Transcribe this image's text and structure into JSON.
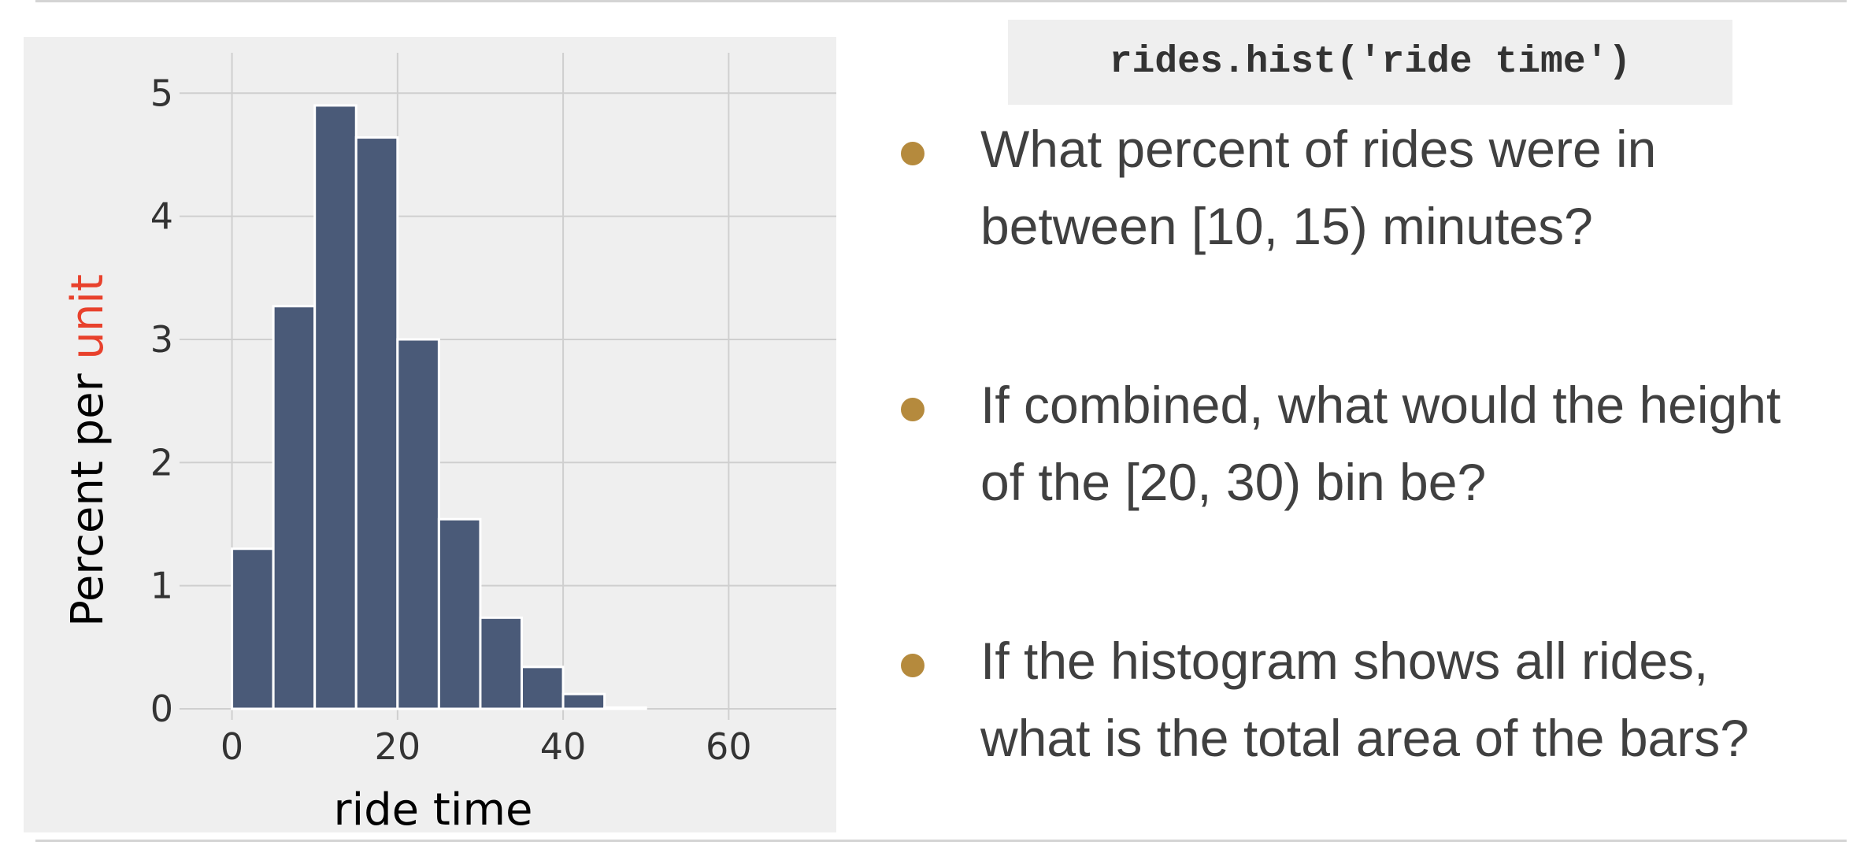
{
  "code": {
    "text": "rides.hist('ride time')"
  },
  "questions": [
    {
      "line1": "What percent of rides were in",
      "line2": "between [10, 15) minutes?"
    },
    {
      "line1": "If combined, what would the height",
      "line2": "of the [20, 30) bin be?"
    },
    {
      "line1": "If the histogram shows all rides,",
      "line2": "what is the total area of the bars?"
    }
  ],
  "colors": {
    "bar_fill": "#4a5a78",
    "bar_edge": "#ffffff",
    "plot_bg": "#efefef",
    "grid": "#cfcfcf",
    "bullet": "#b58a3d",
    "ylabel_highlight": "#e8412c",
    "text": "#404040"
  },
  "chart_data": {
    "type": "bar",
    "subtype": "histogram",
    "xlabel": "ride time",
    "ylabel_prefix": "Percent per ",
    "ylabel_highlight": "unit",
    "bins": [
      {
        "start": 0,
        "end": 5,
        "value": 1.3
      },
      {
        "start": 5,
        "end": 10,
        "value": 3.27
      },
      {
        "start": 10,
        "end": 15,
        "value": 4.9
      },
      {
        "start": 15,
        "end": 20,
        "value": 4.64
      },
      {
        "start": 20,
        "end": 25,
        "value": 3.0
      },
      {
        "start": 25,
        "end": 30,
        "value": 1.54
      },
      {
        "start": 30,
        "end": 35,
        "value": 0.74
      },
      {
        "start": 35,
        "end": 40,
        "value": 0.34
      },
      {
        "start": 40,
        "end": 45,
        "value": 0.12
      },
      {
        "start": 45,
        "end": 50,
        "value": 0.01
      }
    ],
    "xticks": [
      0,
      20,
      40,
      60
    ],
    "yticks": [
      0,
      1,
      2,
      3,
      4,
      5
    ],
    "xlim": [
      -5,
      73
    ],
    "ylim": [
      0,
      5.2
    ],
    "grid": true
  }
}
